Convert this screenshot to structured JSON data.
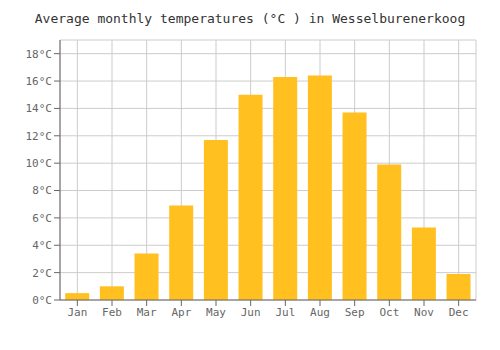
{
  "chart_data": {
    "type": "bar",
    "title": "Average monthly temperatures (°C ) in Wesselburenerkoog",
    "categories": [
      "Jan",
      "Feb",
      "Mar",
      "Apr",
      "May",
      "Jun",
      "Jul",
      "Aug",
      "Sep",
      "Oct",
      "Nov",
      "Dec"
    ],
    "values": [
      0.5,
      1.0,
      3.4,
      6.9,
      11.7,
      15.0,
      16.3,
      16.4,
      13.7,
      9.9,
      5.3,
      1.9
    ],
    "color": "#FFC020",
    "ylim": [
      0,
      19
    ],
    "yticks": [
      {
        "value": 0,
        "label": "0°C"
      },
      {
        "value": 2,
        "label": "2°C"
      },
      {
        "value": 4,
        "label": "4°C"
      },
      {
        "value": 6,
        "label": "6°C"
      },
      {
        "value": 8,
        "label": "8°C"
      },
      {
        "value": 10,
        "label": "10°C"
      },
      {
        "value": 12,
        "label": "12°C"
      },
      {
        "value": 14,
        "label": "14°C"
      },
      {
        "value": 16,
        "label": "16°C"
      },
      {
        "value": 18,
        "label": "18°C"
      }
    ],
    "grid": true
  }
}
